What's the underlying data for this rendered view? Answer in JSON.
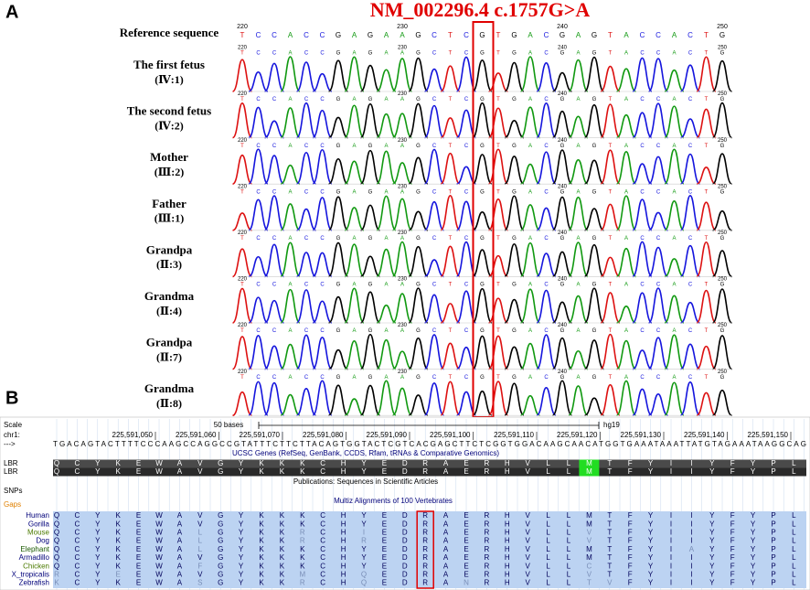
{
  "panel_a": {
    "label": "A",
    "title": "NM_002296.4 c.1757G>A",
    "reference": {
      "label": "Reference sequence",
      "sequence": "TCCACCGAGAAGCTCGTGACGAGTACCACTG"
    },
    "positions": [
      220,
      230,
      240,
      250
    ],
    "samples": [
      {
        "name": "The first fetus",
        "id": "(Ⅳ:1)",
        "sequence": "TCCACCGAGAAGCTCGTGACGAGTACCACTG"
      },
      {
        "name": "The second fetus",
        "id": "(Ⅳ:2)",
        "sequence": "TCCACCGAGAAGCTCGTGACGAGTACCACTG"
      },
      {
        "name": "Mother",
        "id": "(Ⅲ:2)",
        "sequence": "TCCACCGAGAAGCTCGTGACGAGTACCACTG"
      },
      {
        "name": "Father",
        "id": "(Ⅲ:1)",
        "sequence": "TCCACCGAGAAGCTCGTGACGAGTACCACTG"
      },
      {
        "name": "Grandpa",
        "id": "(Ⅱ:3)",
        "sequence": "TCCACCGAGAAGCTCGTGACGAGTACCACTG"
      },
      {
        "name": "Grandma",
        "id": "(Ⅱ:4)",
        "sequence": "TCCACCGAGAAGCTCGTGACGAGTACCACTG"
      },
      {
        "name": "Grandpa",
        "id": "(Ⅱ:7)",
        "sequence": "TCCACCGAGAAGCTCGTGACGAGTACCACTG"
      },
      {
        "name": "Grandma",
        "id": "(Ⅱ:8)",
        "sequence": "TCCACCGAGAAGCTCGTGACGAGTACCACTG"
      }
    ]
  },
  "panel_b": {
    "label": "B",
    "scale": {
      "label": "Scale",
      "bases": "50 bases",
      "assembly": "hg19"
    },
    "chr": {
      "label": "chr1:",
      "positions": [
        "225,591,050",
        "225,591,060",
        "225,591,070",
        "225,591,080",
        "225,591,090",
        "225,591,100",
        "225,591,110",
        "225,591,120",
        "225,591,130",
        "225,591,140",
        "225,591,150"
      ]
    },
    "strand": "--->",
    "dna": "TGACAGTACTTTTCCCAAGCCAGGCCGTATTTCTTCTTACAGTGGTACTCGTCACGAGCTTCTCGGTGGACAAGCAACATGGTGAAATAAATTATGTAGAAATAAGGCAG",
    "genes_track": "UCSC Genes (RefSeq, GenBank, CCDS, Rfam, tRNAs & Comparative Genomics)",
    "gene_rows": [
      {
        "name": "LBR",
        "protein": "QCYKEWAVGYKKKCHYEDRAERHVLLMTFYIIYFYPL"
      },
      {
        "name": "LBR",
        "protein": "QCYKEWAVGYKKKCHYEDRAERHVLLMTFYIIYFYPL"
      }
    ],
    "publications": "Publications: Sequences in Scientific Articles",
    "snps": "SNPs",
    "gaps": "Gaps",
    "multiz": "Multiz Alignments of 100 Vertebrates",
    "species": [
      {
        "name": "Human",
        "color": "#00007a",
        "protein": "QCYKEWAVGYKKKCHYEDRAERHVLLMTFYIIYFYPL"
      },
      {
        "name": "Gorilla",
        "color": "#00007a",
        "protein": "QCYKEWAVGYKKKCHYEDRAERHVLLMTFYIIYFYPL"
      },
      {
        "name": "Mouse",
        "color": "#4b7a00",
        "protein": "QCYKEWALGYKKRCHIEDRAERHVLLVTFYIIYFYPL"
      },
      {
        "name": "Dog",
        "color": "#00007a",
        "protein": "QCYKEWALGYKKRCHREDRAERHVLLVTFYIIYFYPL"
      },
      {
        "name": "Elephant",
        "color": "#1a5a00",
        "protein": "QCYKEWALGYKKKCHYEDRAERHVLLMTFYIAYFYPL"
      },
      {
        "name": "Armadillo",
        "color": "#00007a",
        "protein": "QCYKEWAVGYKKKCHYEDRAERHVLLMTFYIIYFYPL"
      },
      {
        "name": "Chicken",
        "color": "#4b7a00",
        "protein": "QCYKEWAFGYKKKCHYEDRAERHVLLCTFYIIYFYPL"
      },
      {
        "name": "X_tropicalis",
        "color": "#00007a",
        "protein": "RCYEEWAVGYKKMCHQEDRAERHVLLVTFYIIYFYPL"
      },
      {
        "name": "Zebrafish",
        "color": "#00007a",
        "protein": "KCYKEWASGYKKRCHQEDRANRHVLLTVFYIIYFYPL"
      }
    ]
  }
}
